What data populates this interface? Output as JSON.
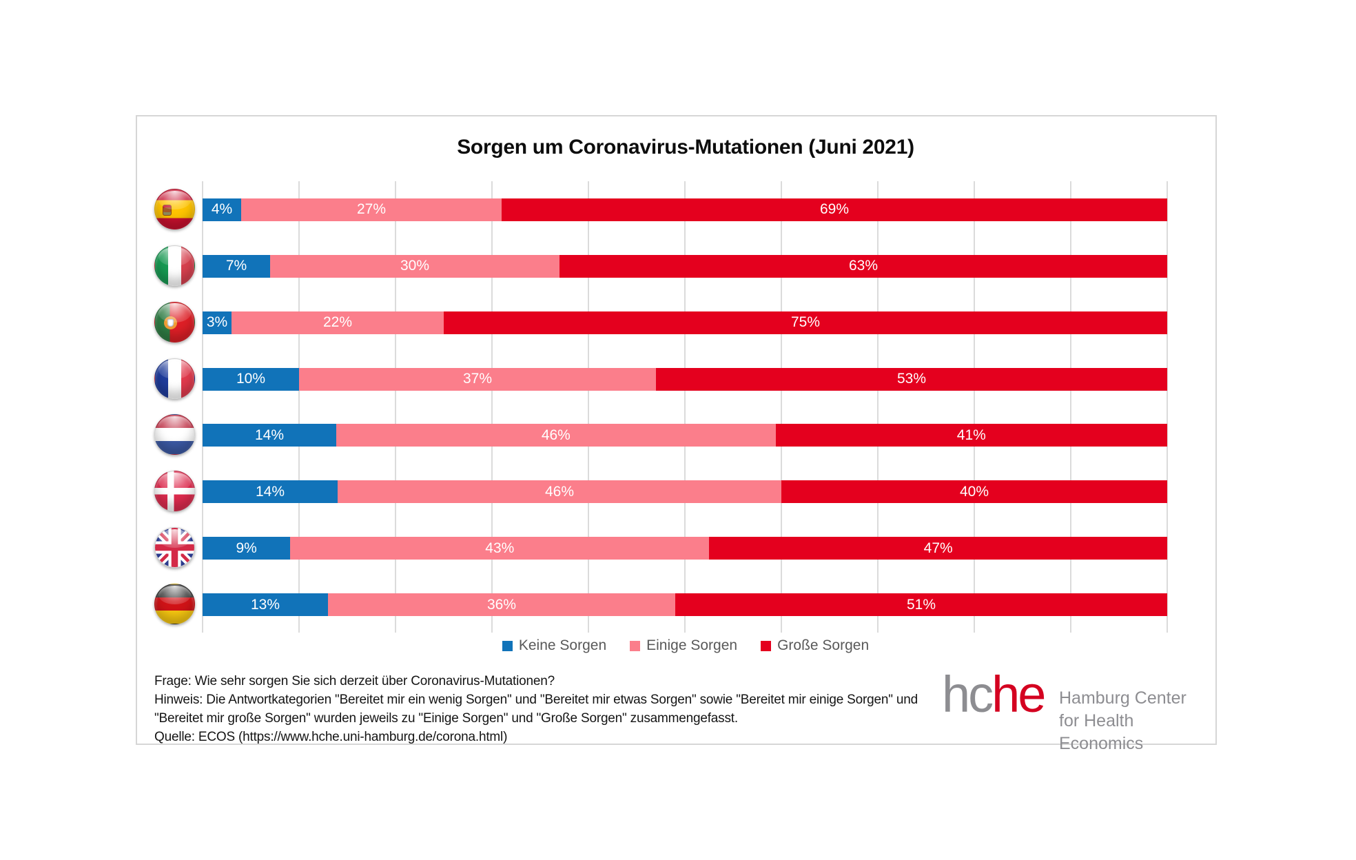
{
  "title": "Sorgen um Coronavirus-Mutationen (Juni 2021)",
  "legend": [
    {
      "label": "Keine Sorgen",
      "color": "#1173B9"
    },
    {
      "label": "Einige Sorgen",
      "color": "#FB7E8B"
    },
    {
      "label": "Große Sorgen",
      "color": "#E4001E"
    }
  ],
  "chart_data": {
    "type": "bar",
    "orientation": "horizontal",
    "stacked": true,
    "unit": "%",
    "title": "Sorgen um Coronavirus-Mutationen (Juni 2021)",
    "categories": [
      "Spanien",
      "Italien",
      "Portugal",
      "Frankreich",
      "Niederlande",
      "Dänemark",
      "Großbritannien",
      "Deutschland"
    ],
    "flags": [
      "spain",
      "italy",
      "portugal",
      "france",
      "netherlands",
      "denmark",
      "uk",
      "germany"
    ],
    "series": [
      {
        "name": "Keine Sorgen",
        "values": [
          4,
          7,
          3,
          10,
          14,
          14,
          9,
          13
        ]
      },
      {
        "name": "Einige Sorgen",
        "values": [
          27,
          30,
          22,
          37,
          46,
          46,
          43,
          36
        ]
      },
      {
        "name": "Große Sorgen",
        "values": [
          69,
          63,
          75,
          53,
          41,
          40,
          47,
          51
        ]
      }
    ],
    "data_labels": [
      [
        "4%",
        "27%",
        "69%"
      ],
      [
        "7%",
        "30%",
        "63%"
      ],
      [
        "3%",
        "22%",
        "75%"
      ],
      [
        "10%",
        "37%",
        "53%"
      ],
      [
        "14%",
        "46%",
        "41%"
      ],
      [
        "14%",
        "46%",
        "40%"
      ],
      [
        "9%",
        "43%",
        "47%"
      ],
      [
        "13%",
        "36%",
        "51%"
      ]
    ],
    "xlim": [
      0,
      100
    ],
    "gridline_step": 10,
    "grid": true,
    "legend_position": "bottom"
  },
  "footer": {
    "frage": "Frage: Wie sehr sorgen Sie sich derzeit über  Coronavirus-Mutationen?",
    "hinweis": "Hinweis: Die Antwortkategorien \"Bereitet mir ein wenig Sorgen\" und \"Bereitet mir etwas Sorgen\" sowie \"Bereitet mir einige Sorgen\" und \"Bereitet mir große Sorgen\" wurden jeweils zu \"Einige Sorgen\" und \"Große Sorgen\" zusammengefasst.",
    "quelle": "Quelle: ECOS (https://www.hche.uni-hamburg.de/corona.html)"
  },
  "logo": {
    "text_gray": "hc",
    "text_red": "he",
    "line1": "Hamburg Center",
    "line2": "for Health Economics"
  },
  "colors": {
    "blue": "#1173B9",
    "pink": "#FB7E8B",
    "red": "#E4001E",
    "grid": "#DBDBDB",
    "frame_border": "#D6D6D6",
    "legend_text": "#595959",
    "logo_gray": "#8D8D91",
    "logo_red": "#D40020"
  }
}
